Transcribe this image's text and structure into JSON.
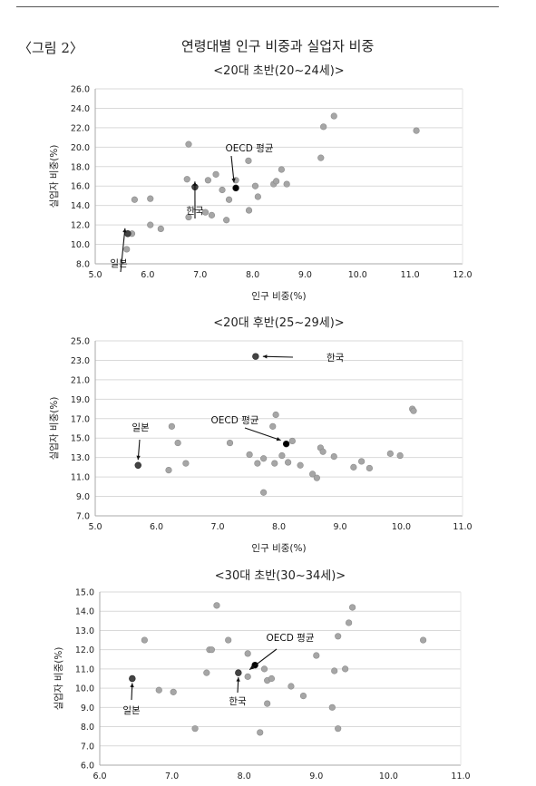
{
  "figure": {
    "label": "〈그림 2〉",
    "title": "연령대별 인구 비중과 실업자 비중"
  },
  "chart_data": [
    {
      "type": "scatter",
      "title": "<20대 초반(20~24세)>",
      "xlabel": "인구 비중(%)",
      "ylabel": "실업자 비중(%)",
      "xlim": [
        5.0,
        12.0
      ],
      "ylim": [
        8.0,
        26.0
      ],
      "xticks": [
        "5.0",
        "6.0",
        "7.0",
        "8.0",
        "9.0",
        "10.0",
        "11.0",
        "12.0"
      ],
      "yticks": [
        "8.0",
        "10.0",
        "12.0",
        "14.0",
        "16.0",
        "18.0",
        "20.0",
        "22.0",
        "24.0",
        "26.0"
      ],
      "grid": true,
      "points": [
        {
          "x": 5.6,
          "y": 9.5
        },
        {
          "x": 5.7,
          "y": 11.1
        },
        {
          "x": 5.75,
          "y": 14.6
        },
        {
          "x": 6.05,
          "y": 12.0
        },
        {
          "x": 6.05,
          "y": 14.7
        },
        {
          "x": 6.25,
          "y": 11.6
        },
        {
          "x": 6.75,
          "y": 16.7
        },
        {
          "x": 6.78,
          "y": 12.8
        },
        {
          "x": 6.78,
          "y": 20.3
        },
        {
          "x": 7.1,
          "y": 13.3
        },
        {
          "x": 7.15,
          "y": 16.6
        },
        {
          "x": 7.22,
          "y": 13.0
        },
        {
          "x": 7.3,
          "y": 17.2
        },
        {
          "x": 7.42,
          "y": 15.6
        },
        {
          "x": 7.5,
          "y": 12.5
        },
        {
          "x": 7.55,
          "y": 14.6
        },
        {
          "x": 7.68,
          "y": 16.6
        },
        {
          "x": 7.92,
          "y": 18.6
        },
        {
          "x": 7.93,
          "y": 13.5
        },
        {
          "x": 8.05,
          "y": 16.0
        },
        {
          "x": 8.1,
          "y": 14.9
        },
        {
          "x": 8.4,
          "y": 16.2
        },
        {
          "x": 8.45,
          "y": 16.5
        },
        {
          "x": 8.55,
          "y": 17.7
        },
        {
          "x": 8.65,
          "y": 16.2
        },
        {
          "x": 9.3,
          "y": 18.9
        },
        {
          "x": 9.35,
          "y": 22.1
        },
        {
          "x": 9.55,
          "y": 23.2
        },
        {
          "x": 11.12,
          "y": 21.7
        }
      ],
      "highlights": [
        {
          "label": "일본",
          "x": 5.62,
          "y": 11.1
        },
        {
          "label": "한국",
          "x": 6.9,
          "y": 15.9
        },
        {
          "label": "OECD 평균",
          "x": 7.68,
          "y": 15.8
        }
      ]
    },
    {
      "type": "scatter",
      "title": "<20대 후반(25~29세)>",
      "xlabel": "인구 비중(%)",
      "ylabel": "실업자 비중(%)",
      "xlim": [
        5.0,
        11.0
      ],
      "ylim": [
        7.0,
        25.0
      ],
      "xticks": [
        "5.0",
        "6.0",
        "7.0",
        "8.0",
        "9.0",
        "10.0",
        "11.0"
      ],
      "yticks": [
        "7.0",
        "9.0",
        "11.0",
        "13.0",
        "15.0",
        "17.0",
        "19.0",
        "21.0",
        "23.0",
        "25.0"
      ],
      "grid": true,
      "points": [
        {
          "x": 6.2,
          "y": 11.7
        },
        {
          "x": 6.25,
          "y": 16.2
        },
        {
          "x": 6.35,
          "y": 14.5
        },
        {
          "x": 6.48,
          "y": 12.4
        },
        {
          "x": 7.2,
          "y": 14.5
        },
        {
          "x": 7.52,
          "y": 13.3
        },
        {
          "x": 7.65,
          "y": 12.4
        },
        {
          "x": 7.75,
          "y": 9.4
        },
        {
          "x": 7.75,
          "y": 12.9
        },
        {
          "x": 7.9,
          "y": 16.2
        },
        {
          "x": 7.93,
          "y": 12.4
        },
        {
          "x": 7.95,
          "y": 17.4
        },
        {
          "x": 8.05,
          "y": 13.2
        },
        {
          "x": 8.15,
          "y": 12.5
        },
        {
          "x": 8.22,
          "y": 14.7
        },
        {
          "x": 8.35,
          "y": 12.2
        },
        {
          "x": 8.55,
          "y": 11.3
        },
        {
          "x": 8.62,
          "y": 10.9
        },
        {
          "x": 8.68,
          "y": 14.0
        },
        {
          "x": 8.72,
          "y": 13.6
        },
        {
          "x": 8.9,
          "y": 13.1
        },
        {
          "x": 9.22,
          "y": 12.0
        },
        {
          "x": 9.35,
          "y": 12.6
        },
        {
          "x": 9.48,
          "y": 11.9
        },
        {
          "x": 9.82,
          "y": 13.4
        },
        {
          "x": 9.98,
          "y": 13.2
        },
        {
          "x": 10.18,
          "y": 18.0
        },
        {
          "x": 10.2,
          "y": 17.8
        }
      ],
      "highlights": [
        {
          "label": "일본",
          "x": 5.7,
          "y": 12.2
        },
        {
          "label": "한국",
          "x": 7.62,
          "y": 23.4
        },
        {
          "label": "OECD 평균",
          "x": 8.12,
          "y": 14.4
        }
      ]
    },
    {
      "type": "scatter",
      "title": "<30대 초반(30~34세)>",
      "xlabel": "",
      "ylabel": "실업자 비중(%)",
      "xlim": [
        6.0,
        11.0
      ],
      "ylim": [
        6.0,
        15.0
      ],
      "xticks": [
        "6.0",
        "7.0",
        "8.0",
        "9.0",
        "10.0",
        "11.0"
      ],
      "yticks": [
        "6.0",
        "7.0",
        "8.0",
        "9.0",
        "10.0",
        "11.0",
        "12.0",
        "13.0",
        "14.0",
        "15.0"
      ],
      "grid": true,
      "points": [
        {
          "x": 6.62,
          "y": 12.5
        },
        {
          "x": 6.82,
          "y": 9.9
        },
        {
          "x": 7.02,
          "y": 9.8
        },
        {
          "x": 7.32,
          "y": 7.9
        },
        {
          "x": 7.48,
          "y": 10.8
        },
        {
          "x": 7.52,
          "y": 12.0
        },
        {
          "x": 7.55,
          "y": 12.0
        },
        {
          "x": 7.62,
          "y": 14.3
        },
        {
          "x": 7.78,
          "y": 12.5
        },
        {
          "x": 8.05,
          "y": 10.6
        },
        {
          "x": 8.05,
          "y": 11.8
        },
        {
          "x": 8.22,
          "y": 7.7
        },
        {
          "x": 8.28,
          "y": 11.0
        },
        {
          "x": 8.32,
          "y": 9.2
        },
        {
          "x": 8.32,
          "y": 10.4
        },
        {
          "x": 8.38,
          "y": 10.5
        },
        {
          "x": 8.65,
          "y": 10.1
        },
        {
          "x": 8.82,
          "y": 9.6
        },
        {
          "x": 9.0,
          "y": 11.7
        },
        {
          "x": 9.22,
          "y": 9.0
        },
        {
          "x": 9.25,
          "y": 10.9
        },
        {
          "x": 9.3,
          "y": 12.7
        },
        {
          "x": 9.3,
          "y": 7.9
        },
        {
          "x": 9.4,
          "y": 11.0
        },
        {
          "x": 9.45,
          "y": 13.4
        },
        {
          "x": 9.5,
          "y": 14.2
        },
        {
          "x": 10.48,
          "y": 12.5
        }
      ],
      "highlights": [
        {
          "label": "일본",
          "x": 6.45,
          "y": 10.5
        },
        {
          "label": "한국",
          "x": 7.92,
          "y": 10.8
        },
        {
          "label": "OECD 평균",
          "x": 8.15,
          "y": 11.2
        }
      ]
    }
  ]
}
